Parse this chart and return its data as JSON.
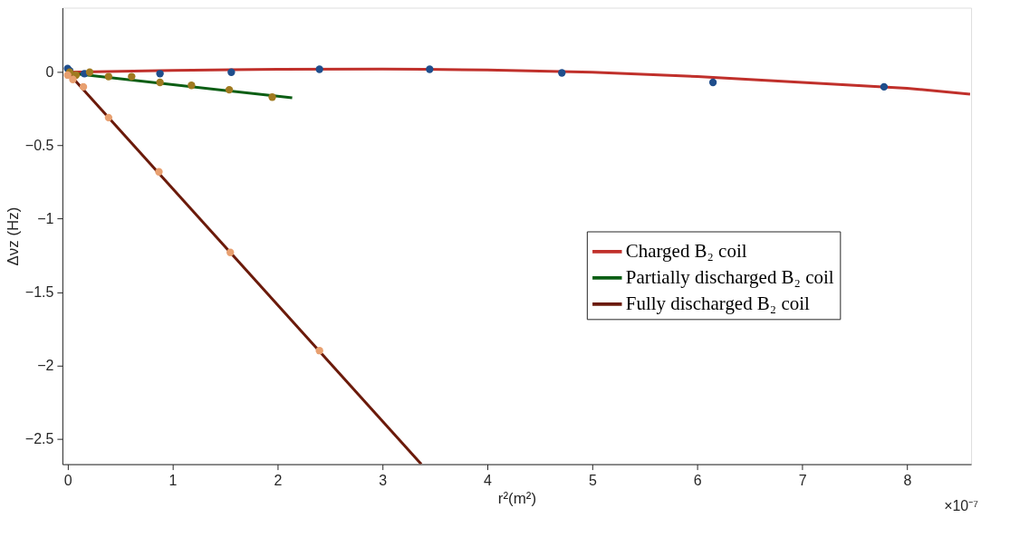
{
  "chart_data": {
    "type": "line",
    "xlabel": "r²(m²)",
    "ylabel": "Δνz (Hz)",
    "annotations": [
      "×10⁻⁷"
    ],
    "xlim": [
      -0.05,
      8.61
    ],
    "xticks": [
      0,
      1,
      2,
      3,
      4,
      5,
      6,
      7,
      8
    ],
    "ylim": [
      -2.675,
      0.44
    ],
    "yticks": [
      -2.5,
      -2,
      -1.5,
      -1,
      -0.5,
      0
    ],
    "grid": false,
    "legend": "right",
    "marker": "none",
    "line_style": "solid",
    "series": [
      {
        "name": "Charged B₂ coil",
        "type": "line",
        "color": "#c0302b",
        "x": [
          0,
          1,
          2,
          3,
          3.4,
          4,
          5,
          6,
          7,
          8,
          8.6
        ],
        "values": [
          0,
          0.012,
          0.02,
          0.022,
          0.02,
          0.015,
          0.0,
          -0.03,
          -0.07,
          -0.11,
          -0.15
        ]
      },
      {
        "name": "Partially discharged B₂ coil",
        "type": "line",
        "color": "#0b5e14",
        "x": [
          0,
          2.14
        ],
        "values": [
          -0.005,
          -0.175
        ]
      },
      {
        "name": "Fully discharged B₂ coil",
        "type": "line",
        "color": "#6b1a0a",
        "x": [
          0,
          3.37
        ],
        "values": [
          0,
          -2.675
        ]
      },
      {
        "type": "scatter",
        "color": "#1f4e8c",
        "marker": "circle",
        "x": [
          0.0,
          0.02,
          0.16,
          0.88,
          1.56,
          2.4,
          3.45,
          4.71,
          6.15,
          7.78
        ],
        "values": [
          0.025,
          0.01,
          -0.01,
          -0.01,
          0.0,
          0.02,
          0.02,
          -0.005,
          -0.07,
          -0.1
        ]
      },
      {
        "type": "scatter",
        "color": "#a07a20",
        "marker": "circle",
        "x": [
          0.02,
          0.08,
          0.21,
          0.39,
          0.61,
          0.88,
          1.18,
          1.54,
          1.95
        ],
        "values": [
          0.0,
          -0.02,
          0.0,
          -0.03,
          -0.03,
          -0.07,
          -0.09,
          -0.12,
          -0.17
        ]
      },
      {
        "type": "scatter",
        "color": "#e8a070",
        "marker": "circle",
        "x": [
          0.0,
          0.05,
          0.15,
          0.39,
          0.87,
          1.55,
          2.4
        ],
        "values": [
          -0.02,
          -0.05,
          -0.1,
          -0.31,
          -0.68,
          -1.23,
          -1.9
        ]
      }
    ]
  }
}
